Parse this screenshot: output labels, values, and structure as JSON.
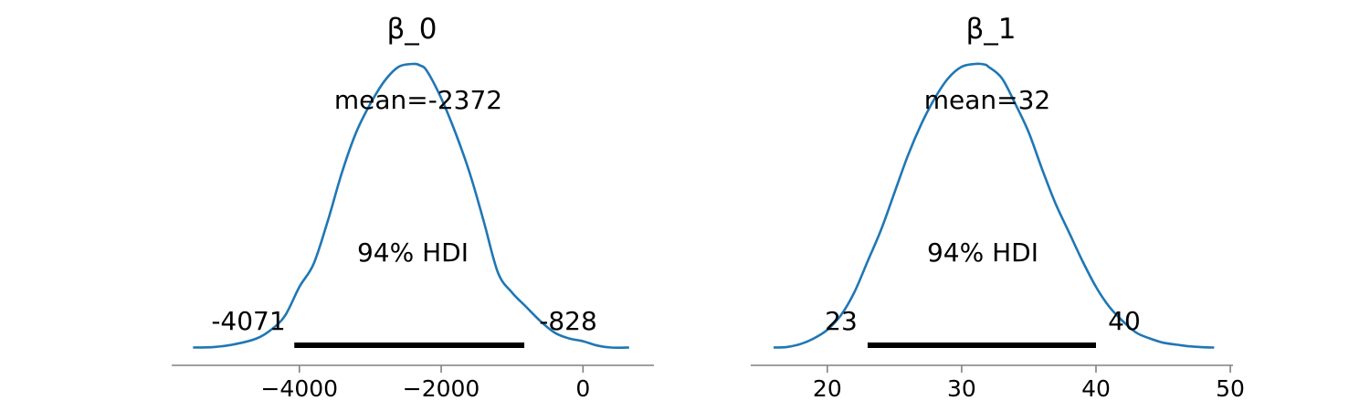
{
  "chart_data": [
    {
      "type": "area",
      "title": "β_0",
      "mean_label": "mean=-2372",
      "mean": -2372,
      "hdi_label": "94% HDI",
      "hdi": [
        -4071,
        -828
      ],
      "hdi_low_label": "-4071",
      "hdi_high_label": "-828",
      "xlim": [
        -5800,
        1000
      ],
      "xticks": [
        -4000,
        -2000,
        0
      ],
      "xtick_labels": [
        "−4000",
        "−2000",
        "0"
      ],
      "x": [
        -5500,
        -5200,
        -4900,
        -4600,
        -4400,
        -4200,
        -4000,
        -3800,
        -3600,
        -3400,
        -3200,
        -3000,
        -2800,
        -2600,
        -2400,
        -2300,
        -2200,
        -2000,
        -1800,
        -1600,
        -1400,
        -1200,
        -1000,
        -800,
        -600,
        -400,
        -200,
        0,
        200,
        400,
        650
      ],
      "density": [
        0.008,
        0.01,
        0.02,
        0.04,
        0.07,
        0.12,
        0.22,
        0.3,
        0.45,
        0.62,
        0.76,
        0.86,
        0.94,
        0.99,
        1.0,
        0.995,
        0.975,
        0.88,
        0.76,
        0.62,
        0.45,
        0.27,
        0.2,
        0.15,
        0.1,
        0.06,
        0.04,
        0.03,
        0.015,
        0.008,
        0.008
      ],
      "line_color": "#1f77b4",
      "hdi_color": "#000000",
      "axis_color": "#808080"
    },
    {
      "type": "area",
      "title": "β_1",
      "mean_label": "mean=32",
      "mean": 32,
      "hdi_label": "94% HDI",
      "hdi": [
        23,
        40
      ],
      "hdi_low_label": "23",
      "hdi_high_label": "40",
      "xlim": [
        14.3,
        50.2
      ],
      "xticks": [
        20,
        30,
        40,
        50
      ],
      "xtick_labels": [
        "20",
        "30",
        "40",
        "50"
      ],
      "x": [
        16,
        17,
        18,
        19,
        20,
        21,
        22,
        23,
        24,
        25,
        26,
        27,
        28,
        29,
        30,
        31,
        31.7,
        32,
        33,
        34,
        35,
        36,
        37,
        38,
        39,
        40,
        41,
        42,
        43,
        44,
        45,
        46,
        47,
        48,
        48.8
      ],
      "density": [
        0.008,
        0.01,
        0.02,
        0.04,
        0.07,
        0.12,
        0.2,
        0.31,
        0.42,
        0.55,
        0.68,
        0.79,
        0.88,
        0.95,
        0.99,
        1.0,
        0.998,
        0.99,
        0.95,
        0.86,
        0.76,
        0.63,
        0.51,
        0.41,
        0.31,
        0.22,
        0.15,
        0.1,
        0.06,
        0.04,
        0.025,
        0.018,
        0.012,
        0.009,
        0.008
      ],
      "line_color": "#1f77b4",
      "hdi_color": "#000000",
      "axis_color": "#808080"
    }
  ]
}
